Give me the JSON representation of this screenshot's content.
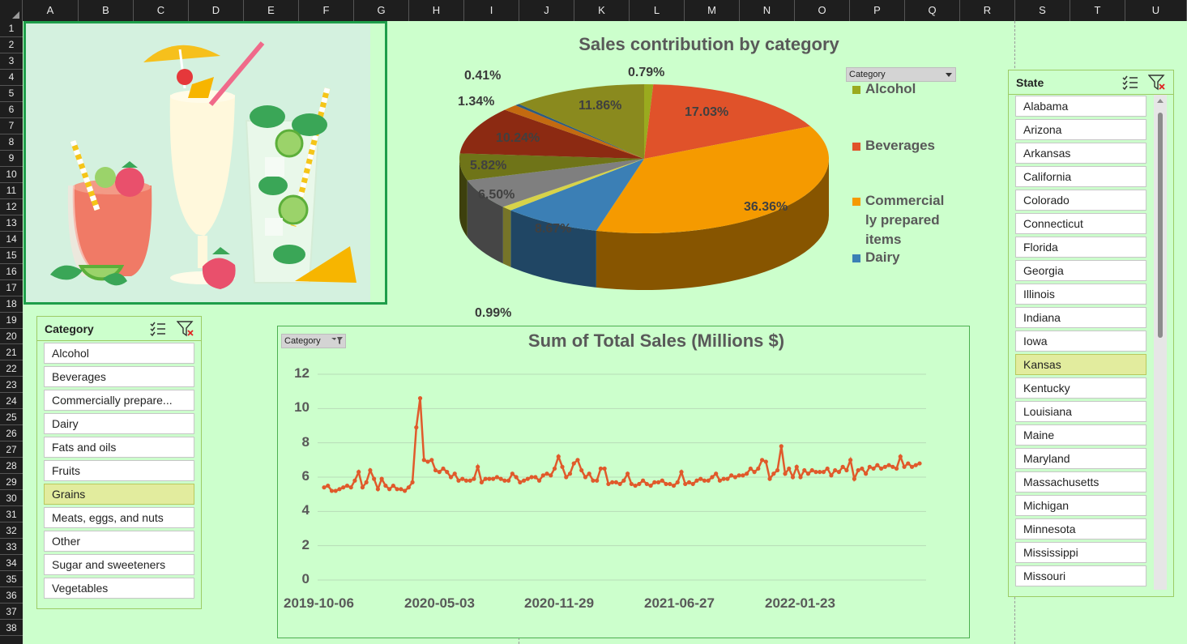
{
  "spreadsheet": {
    "columns": [
      "A",
      "B",
      "C",
      "D",
      "E",
      "F",
      "G",
      "H",
      "I",
      "J",
      "K",
      "L",
      "M",
      "N",
      "O",
      "P",
      "Q",
      "R",
      "S",
      "T",
      "U"
    ],
    "rows": [
      "1",
      "2",
      "3",
      "4",
      "5",
      "6",
      "7",
      "8",
      "9",
      "10",
      "11",
      "12",
      "13",
      "14",
      "15",
      "16",
      "17",
      "18",
      "19",
      "20",
      "21",
      "22",
      "23",
      "24",
      "25",
      "26",
      "27",
      "28",
      "29",
      "30",
      "31",
      "32",
      "33",
      "34",
      "35",
      "36",
      "37",
      "38"
    ]
  },
  "category_slicer": {
    "title": "Category",
    "items": [
      {
        "label": "Alcohol",
        "selected": false
      },
      {
        "label": "Beverages",
        "selected": false
      },
      {
        "label": "Commercially prepare...",
        "selected": false
      },
      {
        "label": "Dairy",
        "selected": false
      },
      {
        "label": "Fats and oils",
        "selected": false
      },
      {
        "label": "Fruits",
        "selected": false
      },
      {
        "label": "Grains",
        "selected": true
      },
      {
        "label": "Meats, eggs, and nuts",
        "selected": false
      },
      {
        "label": "Other",
        "selected": false
      },
      {
        "label": "Sugar and sweeteners",
        "selected": false
      },
      {
        "label": "Vegetables",
        "selected": false
      }
    ]
  },
  "state_slicer": {
    "title": "State",
    "items": [
      {
        "label": "Alabama",
        "selected": false
      },
      {
        "label": "Arizona",
        "selected": false
      },
      {
        "label": "Arkansas",
        "selected": false
      },
      {
        "label": "California",
        "selected": false
      },
      {
        "label": "Colorado",
        "selected": false
      },
      {
        "label": "Connecticut",
        "selected": false
      },
      {
        "label": "Florida",
        "selected": false
      },
      {
        "label": "Georgia",
        "selected": false
      },
      {
        "label": "Illinois",
        "selected": false
      },
      {
        "label": "Indiana",
        "selected": false
      },
      {
        "label": "Iowa",
        "selected": false
      },
      {
        "label": "Kansas",
        "selected": true
      },
      {
        "label": "Kentucky",
        "selected": false
      },
      {
        "label": "Louisiana",
        "selected": false
      },
      {
        "label": "Maine",
        "selected": false
      },
      {
        "label": "Maryland",
        "selected": false
      },
      {
        "label": "Massachusetts",
        "selected": false
      },
      {
        "label": "Michigan",
        "selected": false
      },
      {
        "label": "Minnesota",
        "selected": false
      },
      {
        "label": "Mississippi",
        "selected": false
      },
      {
        "label": "Missouri",
        "selected": false
      }
    ]
  },
  "pie_field_button": "Category",
  "line_field_button": "Category",
  "colors": {
    "alcohol": "#9aaa1e",
    "beverages": "#e0522a",
    "commercial": "#f59a00",
    "dairy": "#3b7fb5",
    "slice_gray": "#7f7f7f",
    "slice_olive": "#6f7418",
    "slice_maroon": "#8c2a12",
    "slice_olive2": "#8a8a1e",
    "slice_yellow": "#d7d24a",
    "line": "#e05a2b",
    "selected_item": "#e2ec9e"
  },
  "chart_data": [
    {
      "type": "pie",
      "title": "Sales contribution by category",
      "legend_position": "right",
      "legend": [
        "Alcohol",
        "Beverages",
        "Commercially prepared items",
        "Dairy"
      ],
      "slices": [
        {
          "label": "0.79%",
          "value": 0.79,
          "color": "#9aaa1e"
        },
        {
          "label": "17.03%",
          "value": 17.03,
          "color": "#e0522a"
        },
        {
          "label": "36.36%",
          "value": 36.36,
          "color": "#f59a00"
        },
        {
          "label": "8.67%",
          "value": 8.67,
          "color": "#3b7fb5"
        },
        {
          "label": "0.99%",
          "value": 0.99,
          "color": "#d7d24a"
        },
        {
          "label": "6.50%",
          "value": 6.5,
          "color": "#7f7f7f"
        },
        {
          "label": "5.82%",
          "value": 5.82,
          "color": "#6f7418"
        },
        {
          "label": "10.24%",
          "value": 10.24,
          "color": "#8c2a12"
        },
        {
          "label": "1.34%",
          "value": 1.34,
          "color": "#c46a10"
        },
        {
          "label": "0.41%",
          "value": 0.41,
          "color": "#2e5a80"
        },
        {
          "label": "11.86%",
          "value": 11.86,
          "color": "#8a8a1e"
        }
      ]
    },
    {
      "type": "line",
      "title": "Sum of Total Sales (Millions $)",
      "ylim": [
        0,
        12
      ],
      "yticks": [
        "0",
        "2",
        "4",
        "6",
        "8",
        "10",
        "12"
      ],
      "xticks": [
        "2019-10-06",
        "2020-05-03",
        "2020-11-29",
        "2021-06-27",
        "2022-01-23"
      ],
      "series": [
        {
          "values": [
            5.4,
            5.5,
            5.2,
            5.2,
            5.3,
            5.4,
            5.5,
            5.4,
            5.8,
            6.3,
            5.4,
            5.7,
            6.4,
            5.9,
            5.3,
            5.9,
            5.5,
            5.3,
            5.5,
            5.3,
            5.3,
            5.2,
            5.4,
            5.7,
            8.9,
            10.6,
            7.0,
            6.9,
            7.0,
            6.4,
            6.3,
            6.5,
            6.3,
            6.0,
            6.2,
            5.8,
            5.9,
            5.8,
            5.8,
            5.9,
            6.6,
            5.7,
            5.9,
            5.9,
            5.9,
            6.0,
            5.9,
            5.8,
            5.8,
            6.2,
            6.0,
            5.7,
            5.8,
            5.9,
            6.0,
            6.0,
            5.8,
            6.1,
            6.2,
            6.1,
            6.5,
            7.2,
            6.6,
            6.0,
            6.2,
            6.8,
            7.0,
            6.4,
            6.0,
            6.2,
            5.8,
            5.8,
            6.5,
            6.5,
            5.6,
            5.7,
            5.7,
            5.6,
            5.8,
            6.2,
            5.6,
            5.5,
            5.6,
            5.8,
            5.6,
            5.5,
            5.7,
            5.7,
            5.8,
            5.6,
            5.6,
            5.5,
            5.7,
            6.3,
            5.6,
            5.7,
            5.6,
            5.8,
            5.9,
            5.8,
            5.8,
            6.0,
            6.2,
            5.8,
            5.9,
            5.9,
            6.1,
            6.0,
            6.1,
            6.1,
            6.2,
            6.5,
            6.3,
            6.5,
            7.0,
            6.9,
            5.9,
            6.2,
            6.4,
            7.8,
            6.2,
            6.5,
            6.0,
            6.6,
            6.0,
            6.4,
            6.2,
            6.4,
            6.3,
            6.3,
            6.3,
            6.5,
            6.1,
            6.4,
            6.3,
            6.6,
            6.4,
            7.0,
            5.9,
            6.4,
            6.5,
            6.2,
            6.6,
            6.5,
            6.7,
            6.5,
            6.6,
            6.7,
            6.6,
            6.5,
            7.2,
            6.6,
            6.8,
            6.6,
            6.7,
            6.8
          ]
        }
      ]
    }
  ]
}
